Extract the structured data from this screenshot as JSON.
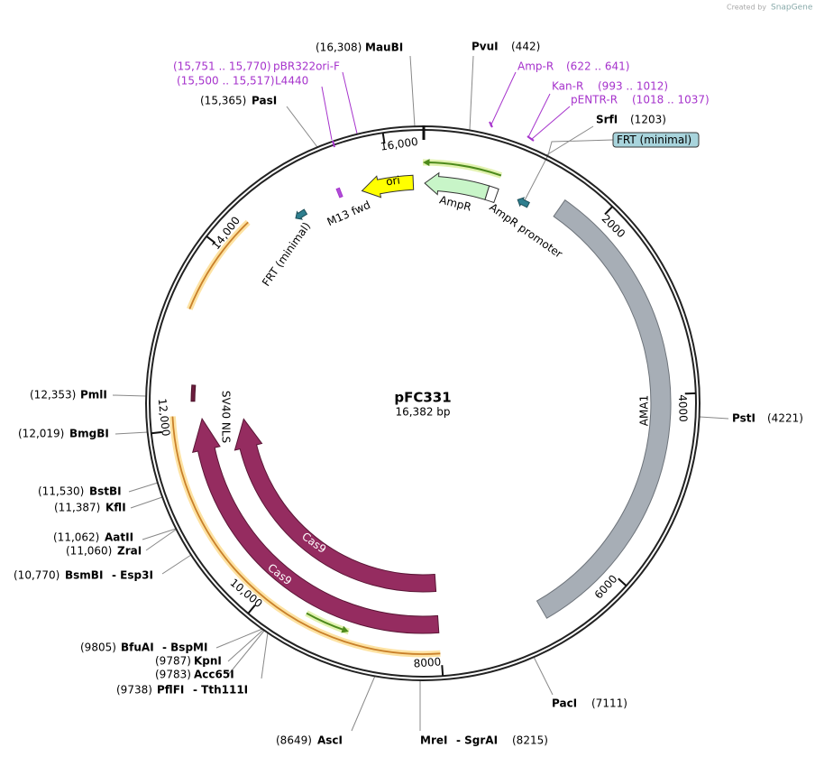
{
  "credit": {
    "prefix": "Created by",
    "brand": "SnapGene"
  },
  "plasmid": {
    "name": "pFC331",
    "length": "16,382 bp"
  },
  "ticks": [
    "2000",
    "4000",
    "6000",
    "8000",
    "10,000",
    "12,000",
    "14,000",
    "16,000"
  ],
  "enzymes": [
    {
      "names": [
        "MauBI"
      ],
      "position": "(16,308)"
    },
    {
      "names": [
        "PvuI"
      ],
      "position": "(442)"
    },
    {
      "names": [
        "SrfI"
      ],
      "position": "(1203)"
    },
    {
      "names": [
        "PasI"
      ],
      "position": "(15,365)"
    },
    {
      "names": [
        "PmlI"
      ],
      "position": "(12,353)"
    },
    {
      "names": [
        "BmgBI"
      ],
      "position": "(12,019)"
    },
    {
      "names": [
        "BstBI"
      ],
      "position": "(11,530)"
    },
    {
      "names": [
        "KflI"
      ],
      "position": "(11,387)"
    },
    {
      "names": [
        "AatII"
      ],
      "position": "(11,062)"
    },
    {
      "names": [
        "ZraI"
      ],
      "position": "(11,060)"
    },
    {
      "names": [
        "BsmBI",
        "- Esp3I"
      ],
      "position": "(10,770)"
    },
    {
      "names": [
        "BfuAI",
        "- BspMI"
      ],
      "position": "(9805)"
    },
    {
      "names": [
        "KpnI"
      ],
      "position": "(9787)"
    },
    {
      "names": [
        "Acc65I"
      ],
      "position": "(9783)"
    },
    {
      "names": [
        "PflFI",
        "- Tth111I"
      ],
      "position": "(9738)"
    },
    {
      "names": [
        "AscI"
      ],
      "position": "(8649)"
    },
    {
      "names": [
        "MreI",
        "- SgrAI"
      ],
      "position": "(8215)"
    },
    {
      "names": [
        "PacI"
      ],
      "position": "(7111)"
    },
    {
      "names": [
        "PstI"
      ],
      "position": "(4221)"
    }
  ],
  "primers": [
    {
      "name": "Amp-R",
      "range": "(622 .. 641)"
    },
    {
      "name": "Kan-R",
      "range": "(993 .. 1012)"
    },
    {
      "name": "pENTR-R",
      "range": "(1018 .. 1037)"
    },
    {
      "name": "pBR322ori-F",
      "range": "(15,751 .. 15,770)"
    },
    {
      "name": "L4440",
      "range": "(15,500 .. 15,517)"
    }
  ],
  "callout": "FRT (minimal)",
  "features": [
    "AmpR",
    "AmpR promoter",
    "ori",
    "M13 fwd",
    "FRT (minimal)",
    "AMA1",
    "Cas9",
    "Cas9",
    "SV40 NLS"
  ]
}
